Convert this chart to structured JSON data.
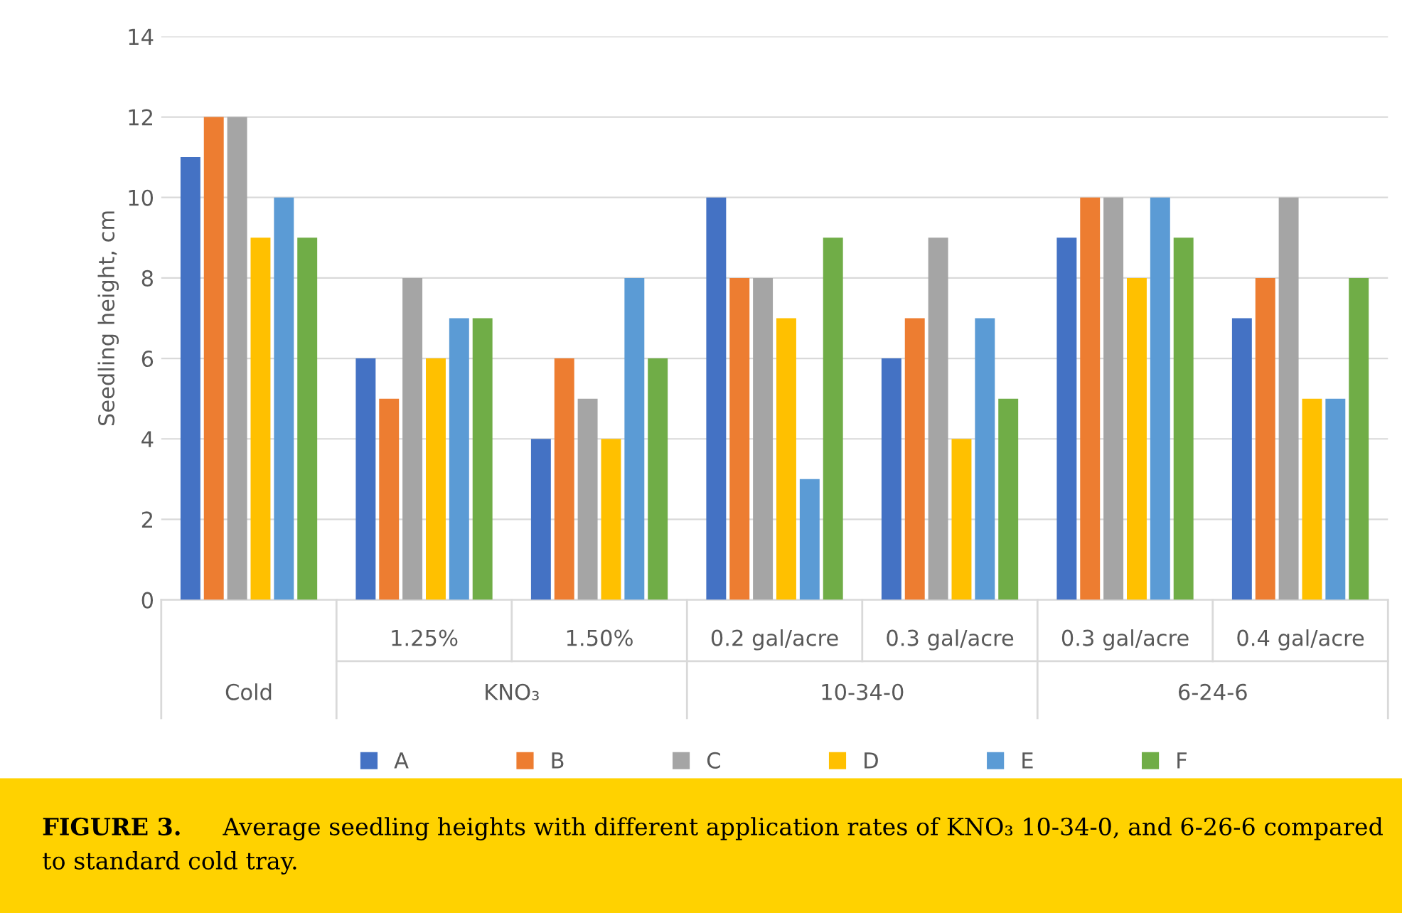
{
  "chart_data": {
    "type": "bar",
    "categories": [
      null,
      "1.25%",
      "1.50%",
      "0.2 gal/acre",
      "0.3 gal/acre",
      "0.3 gal/acre",
      "0.4 gal/acre"
    ],
    "series": [
      {
        "name": "A",
        "color": "#4472c4",
        "values": [
          11,
          6,
          4,
          10,
          6,
          9,
          7
        ]
      },
      {
        "name": "B",
        "color": "#ed7d31",
        "values": [
          12,
          5,
          6,
          8,
          7,
          10,
          8
        ]
      },
      {
        "name": "C",
        "color": "#a5a5a5",
        "values": [
          12,
          8,
          5,
          8,
          9,
          10,
          10
        ]
      },
      {
        "name": "D",
        "color": "#ffc000",
        "values": [
          9,
          6,
          4,
          7,
          4,
          8,
          5
        ]
      },
      {
        "name": "E",
        "color": "#5b9bd5",
        "values": [
          10,
          7,
          8,
          3,
          7,
          10,
          5
        ]
      },
      {
        "name": "F",
        "color": "#70ad47",
        "values": [
          9,
          7,
          6,
          9,
          5,
          9,
          8
        ]
      }
    ],
    "ylabel": "Seedling height, cm",
    "ylim": [
      0,
      14
    ],
    "yticks": [
      0,
      2,
      4,
      6,
      8,
      10,
      12,
      14
    ],
    "grid": "y",
    "legend": "bottom",
    "annotations": [
      "Cold",
      "KNO₃",
      "10-34-0",
      "6-24-6",
      "FIGURE 3.",
      "Average seedling heights with different application rates of KNO₃ 10-34-0, and 6-26-6 compared to standard cold tray."
    ]
  }
}
